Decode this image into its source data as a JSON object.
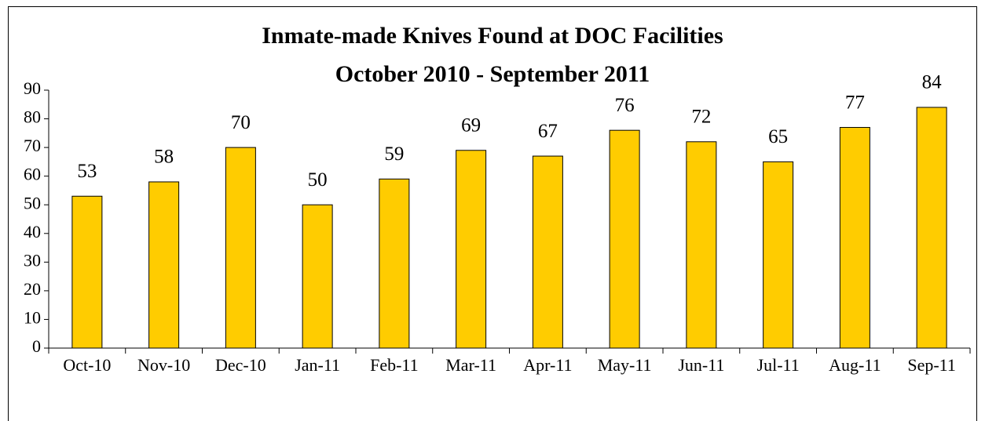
{
  "chart_data": {
    "type": "bar",
    "title": "Inmate-made Knives Found at DOC Facilities",
    "subtitle": "October 2010 - September 2011",
    "categories": [
      "Oct-10",
      "Nov-10",
      "Dec-10",
      "Jan-11",
      "Feb-11",
      "Mar-11",
      "Apr-11",
      "May-11",
      "Jun-11",
      "Jul-11",
      "Aug-11",
      "Sep-11"
    ],
    "values": [
      53,
      58,
      70,
      50,
      59,
      69,
      67,
      76,
      72,
      65,
      77,
      84
    ],
    "color": "#ffcc00",
    "ylim": [
      0,
      90
    ],
    "yticks": [
      0,
      10,
      20,
      30,
      40,
      50,
      60,
      70,
      80,
      90
    ],
    "grid": false
  }
}
